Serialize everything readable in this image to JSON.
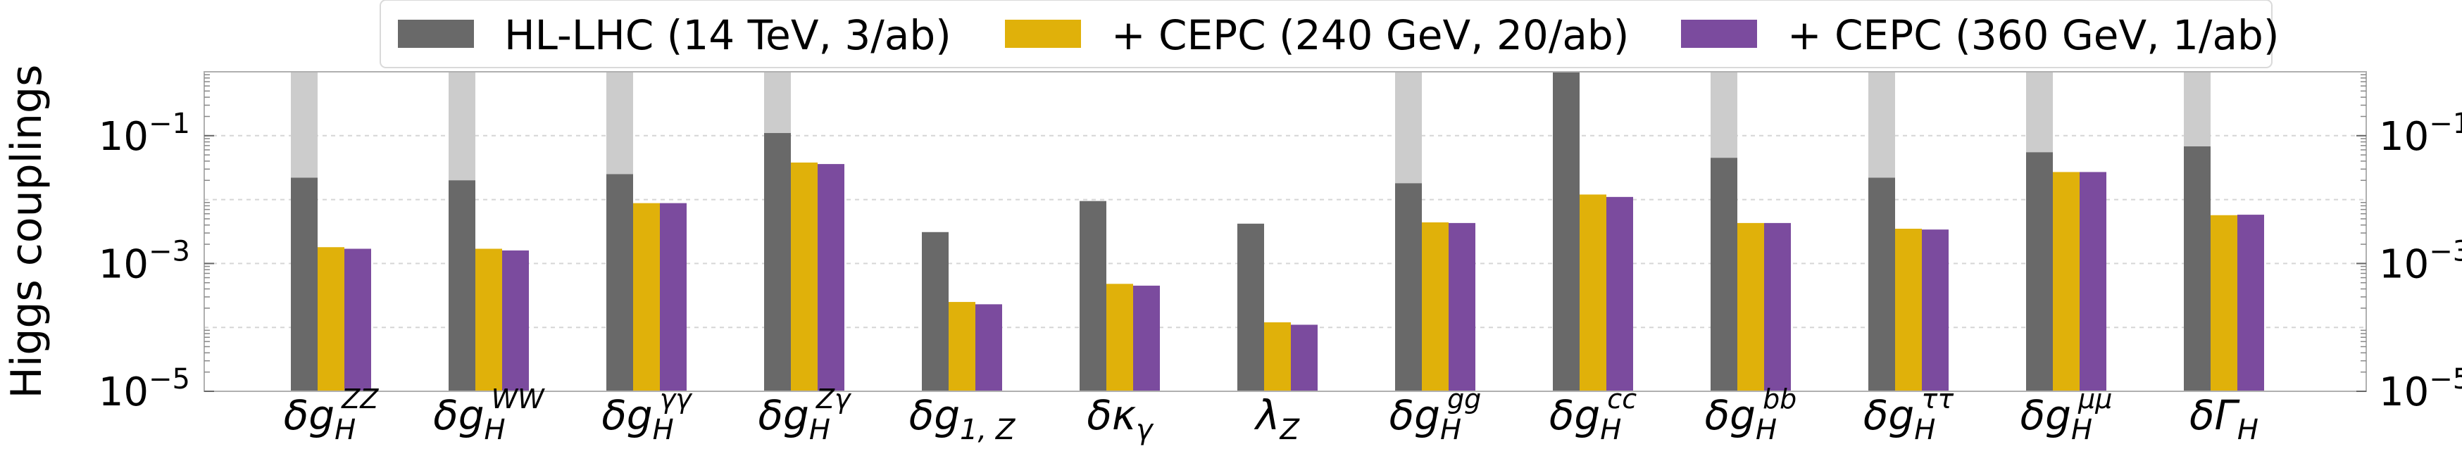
{
  "chart_data": {
    "type": "bar",
    "ylabel": "Higgs couplings",
    "yscale": "log",
    "ylim": [
      1e-05,
      1
    ],
    "yticks": [
      {
        "value": 1e-05,
        "base": "10",
        "exp": "−5"
      },
      {
        "value": 0.001,
        "base": "10",
        "exp": "−3"
      },
      {
        "value": 0.1,
        "base": "10",
        "exp": "−1"
      }
    ],
    "grid": true,
    "legend_position": "top",
    "categories": [
      {
        "sym": "δg",
        "sub": "H",
        "sup": "ZZ"
      },
      {
        "sym": "δg",
        "sub": "H",
        "sup": "WW"
      },
      {
        "sym": "δg",
        "sub": "H",
        "sup": "γγ"
      },
      {
        "sym": "δg",
        "sub": "H",
        "sup": "Zγ"
      },
      {
        "sym": "δg",
        "sub": "1, Z",
        "sup": ""
      },
      {
        "sym": "δκ",
        "sub": "γ",
        "sup": ""
      },
      {
        "sym": "λ",
        "sub": "Z",
        "sup": ""
      },
      {
        "sym": "δg",
        "sub": "H",
        "sup": "gg"
      },
      {
        "sym": "δg",
        "sub": "H",
        "sup": "cc"
      },
      {
        "sym": "δg",
        "sub": "H",
        "sup": "bb"
      },
      {
        "sym": "δg",
        "sub": "H",
        "sup": "ττ"
      },
      {
        "sym": "δg",
        "sub": "H",
        "sup": "μμ"
      },
      {
        "sym": "δΓ",
        "sub": "H",
        "sup": ""
      }
    ],
    "background_bar": {
      "color": "#cccccc",
      "values": [
        1,
        1,
        1,
        1,
        null,
        null,
        null,
        1,
        null,
        1,
        1,
        1,
        1
      ]
    },
    "series": [
      {
        "name": "HL-LHC (14 TeV, 3/ab)",
        "color": "#696969",
        "values": [
          0.022,
          0.02,
          0.025,
          0.11,
          0.0031,
          0.0095,
          0.0042,
          0.018,
          1.0,
          0.045,
          0.022,
          0.055,
          0.068
        ]
      },
      {
        "name": "+ CEPC (240 GeV, 20/ab)",
        "color": "#e0b10a",
        "values": [
          0.0018,
          0.0017,
          0.0088,
          0.038,
          0.00025,
          0.00048,
          0.00012,
          0.0044,
          0.012,
          0.0043,
          0.0035,
          0.027,
          0.0057
        ]
      },
      {
        "name": "+ CEPC (360 GeV, 1/ab)",
        "color": "#7b4b9e",
        "values": [
          0.0017,
          0.0016,
          0.0088,
          0.036,
          0.00023,
          0.00045,
          0.00011,
          0.0043,
          0.011,
          0.0043,
          0.0034,
          0.027,
          0.0058
        ]
      }
    ]
  }
}
